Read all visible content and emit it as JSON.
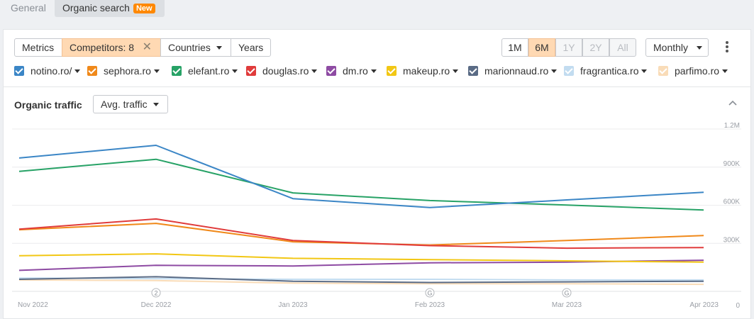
{
  "tabs": {
    "general": "General",
    "organic": "Organic search",
    "new_badge": "New"
  },
  "toolbar": {
    "metrics": "Metrics",
    "competitors": "Competitors: 8",
    "countries": "Countries",
    "years": "Years",
    "ranges": [
      {
        "label": "1M",
        "state": "normal"
      },
      {
        "label": "6M",
        "state": "active"
      },
      {
        "label": "1Y",
        "state": "disabled"
      },
      {
        "label": "2Y",
        "state": "disabled"
      },
      {
        "label": "All",
        "state": "disabled"
      }
    ],
    "granularity": "Monthly"
  },
  "legend": [
    {
      "name": "notino.ro/",
      "color": "#3b86c6"
    },
    {
      "name": "sephora.ro",
      "color": "#f0891a"
    },
    {
      "name": "elefant.ro",
      "color": "#27a266"
    },
    {
      "name": "douglas.ro",
      "color": "#e03b3b"
    },
    {
      "name": "dm.ro",
      "color": "#8e4ba3"
    },
    {
      "name": "makeup.ro",
      "color": "#f2c714"
    },
    {
      "name": "marionnaud.ro",
      "color": "#5a6b85"
    },
    {
      "name": "fragrantica.ro",
      "color": "#c2dcf0"
    },
    {
      "name": "parfimo.ro",
      "color": "#f9dcb8"
    }
  ],
  "section": {
    "title": "Organic traffic",
    "metric": "Avg. traffic"
  },
  "chart_data": {
    "type": "line",
    "x": [
      "Nov 2022",
      "Dec 2022",
      "Jan 2023",
      "Feb 2023",
      "Mar 2023",
      "Apr 2023"
    ],
    "y_ticks": [
      "1.2M",
      "900K",
      "600K",
      "300K",
      "0"
    ],
    "ylim": [
      0,
      1200000
    ],
    "grid": true,
    "annotations": [
      {
        "x": "Dec 2022",
        "label": "2"
      },
      {
        "x": "Feb 2023",
        "label": "G"
      },
      {
        "x": "Mar 2023",
        "label": "G"
      }
    ],
    "series": [
      {
        "name": "notino.ro/",
        "color": "#3b86c6",
        "values": [
          1050000,
          1150000,
          730000,
          660000,
          720000,
          780000
        ]
      },
      {
        "name": "elefant.ro",
        "color": "#27a266",
        "values": [
          945000,
          1040000,
          775000,
          715000,
          680000,
          640000
        ]
      },
      {
        "name": "douglas.ro",
        "color": "#e03b3b",
        "values": [
          490000,
          570000,
          400000,
          360000,
          340000,
          345000
        ]
      },
      {
        "name": "sephora.ro",
        "color": "#f0891a",
        "values": [
          485000,
          535000,
          390000,
          365000,
          400000,
          440000
        ]
      },
      {
        "name": "makeup.ro",
        "color": "#f2c714",
        "values": [
          280000,
          295000,
          260000,
          250000,
          240000,
          230000
        ]
      },
      {
        "name": "dm.ro",
        "color": "#8e4ba3",
        "values": [
          165000,
          205000,
          200000,
          225000,
          230000,
          245000
        ]
      },
      {
        "name": "marionnaud.ro",
        "color": "#5a6b85",
        "values": [
          95000,
          115000,
          80000,
          70000,
          75000,
          80000
        ]
      },
      {
        "name": "fragrantica.ro",
        "color": "#c2dcf0",
        "values": [
          105000,
          100000,
          95000,
          95000,
          90000,
          90000
        ]
      },
      {
        "name": "parfimo.ro",
        "color": "#f9dcb8",
        "values": [
          90000,
          85000,
          65000,
          60000,
          60000,
          55000
        ]
      }
    ]
  }
}
